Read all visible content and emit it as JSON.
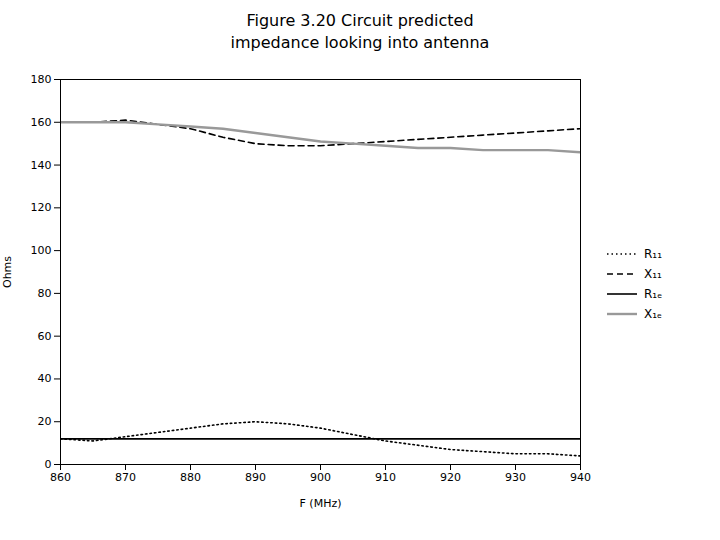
{
  "chart_data": {
    "type": "line",
    "title": "Figure 3.20 Circuit predicted\nimpedance looking into antenna",
    "xlabel": "F (MHz)",
    "ylabel": "Ohms",
    "x": [
      860,
      865,
      870,
      875,
      880,
      885,
      890,
      895,
      900,
      905,
      910,
      915,
      920,
      925,
      930,
      935,
      940
    ],
    "xlim": [
      860,
      940
    ],
    "ylim": [
      0,
      180
    ],
    "xticks": [
      860,
      870,
      880,
      890,
      900,
      910,
      920,
      930,
      940
    ],
    "yticks": [
      0,
      20,
      40,
      60,
      80,
      100,
      120,
      140,
      160,
      180
    ],
    "grid": false,
    "legend": "right",
    "series": [
      {
        "name": "R₁₁",
        "color": "#000000",
        "line_style": "dotted",
        "values": [
          12,
          11,
          13,
          15,
          17,
          19,
          20,
          19,
          17,
          14,
          11,
          9,
          7,
          6,
          5,
          5,
          4
        ]
      },
      {
        "name": "X₁₁",
        "color": "#000000",
        "line_style": "dashed",
        "values": [
          160,
          160,
          161,
          159,
          157,
          153,
          150,
          149,
          149,
          150,
          151,
          152,
          153,
          154,
          155,
          156,
          157
        ]
      },
      {
        "name": "R₁ₑ",
        "color": "#000000",
        "line_style": "solid",
        "values": [
          12,
          12,
          12,
          12,
          12,
          12,
          12,
          12,
          12,
          12,
          12,
          12,
          12,
          12,
          12,
          12,
          12
        ]
      },
      {
        "name": "X₁ₑ",
        "color": "#999999",
        "line_style": "solid",
        "values": [
          160,
          160,
          160,
          159,
          158,
          157,
          155,
          153,
          151,
          150,
          149,
          148,
          148,
          147,
          147,
          147,
          146
        ]
      }
    ]
  }
}
